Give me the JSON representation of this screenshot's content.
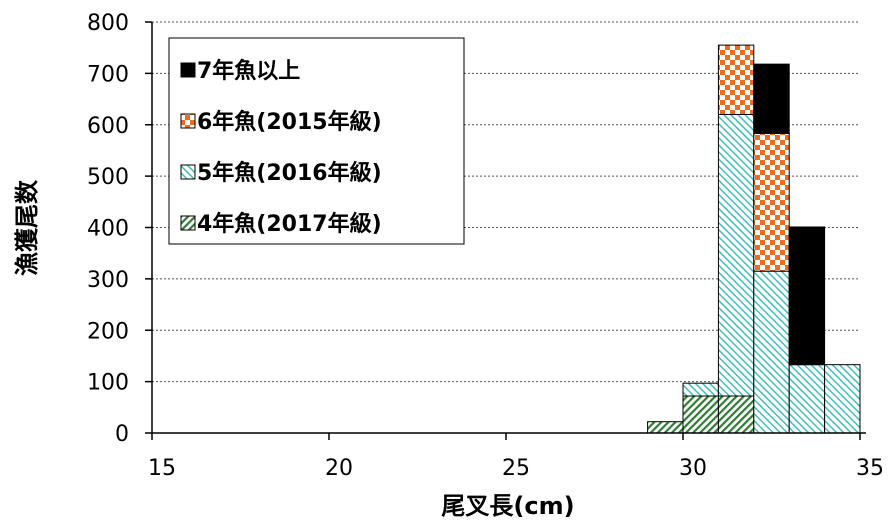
{
  "chart_data": {
    "type": "bar",
    "stacked": true,
    "xlabel": "尾叉長(cm)",
    "ylabel": "漁獲尾数",
    "xlim": [
      15,
      35
    ],
    "ylim": [
      0,
      800
    ],
    "xticks": [
      15,
      20,
      25,
      30,
      35
    ],
    "yticks": [
      0,
      100,
      200,
      300,
      400,
      500,
      600,
      700,
      800
    ],
    "bin_width": 1,
    "bin_starts": [
      29,
      30,
      31,
      32,
      33,
      34
    ],
    "series": [
      {
        "name": "4年魚(2017年級)",
        "values": [
          22,
          72,
          72,
          0,
          0,
          0
        ],
        "color": "#2e7d32",
        "pattern": "dense-diagonal"
      },
      {
        "name": "5年魚(2016年級)",
        "values": [
          0,
          25,
          548,
          315,
          133,
          133
        ],
        "color": "#35b9b9",
        "pattern": "light-diagonal"
      },
      {
        "name": "6年魚(2015年級)",
        "values": [
          0,
          0,
          135,
          268,
          0,
          0
        ],
        "color": "#f26a1b",
        "pattern": "checker"
      },
      {
        "name": "7年魚以上",
        "values": [
          0,
          0,
          0,
          135,
          268,
          0
        ],
        "color": "#000000",
        "pattern": "solid"
      }
    ],
    "grid": "horizontal-dotted",
    "legend_position": "top-left"
  }
}
